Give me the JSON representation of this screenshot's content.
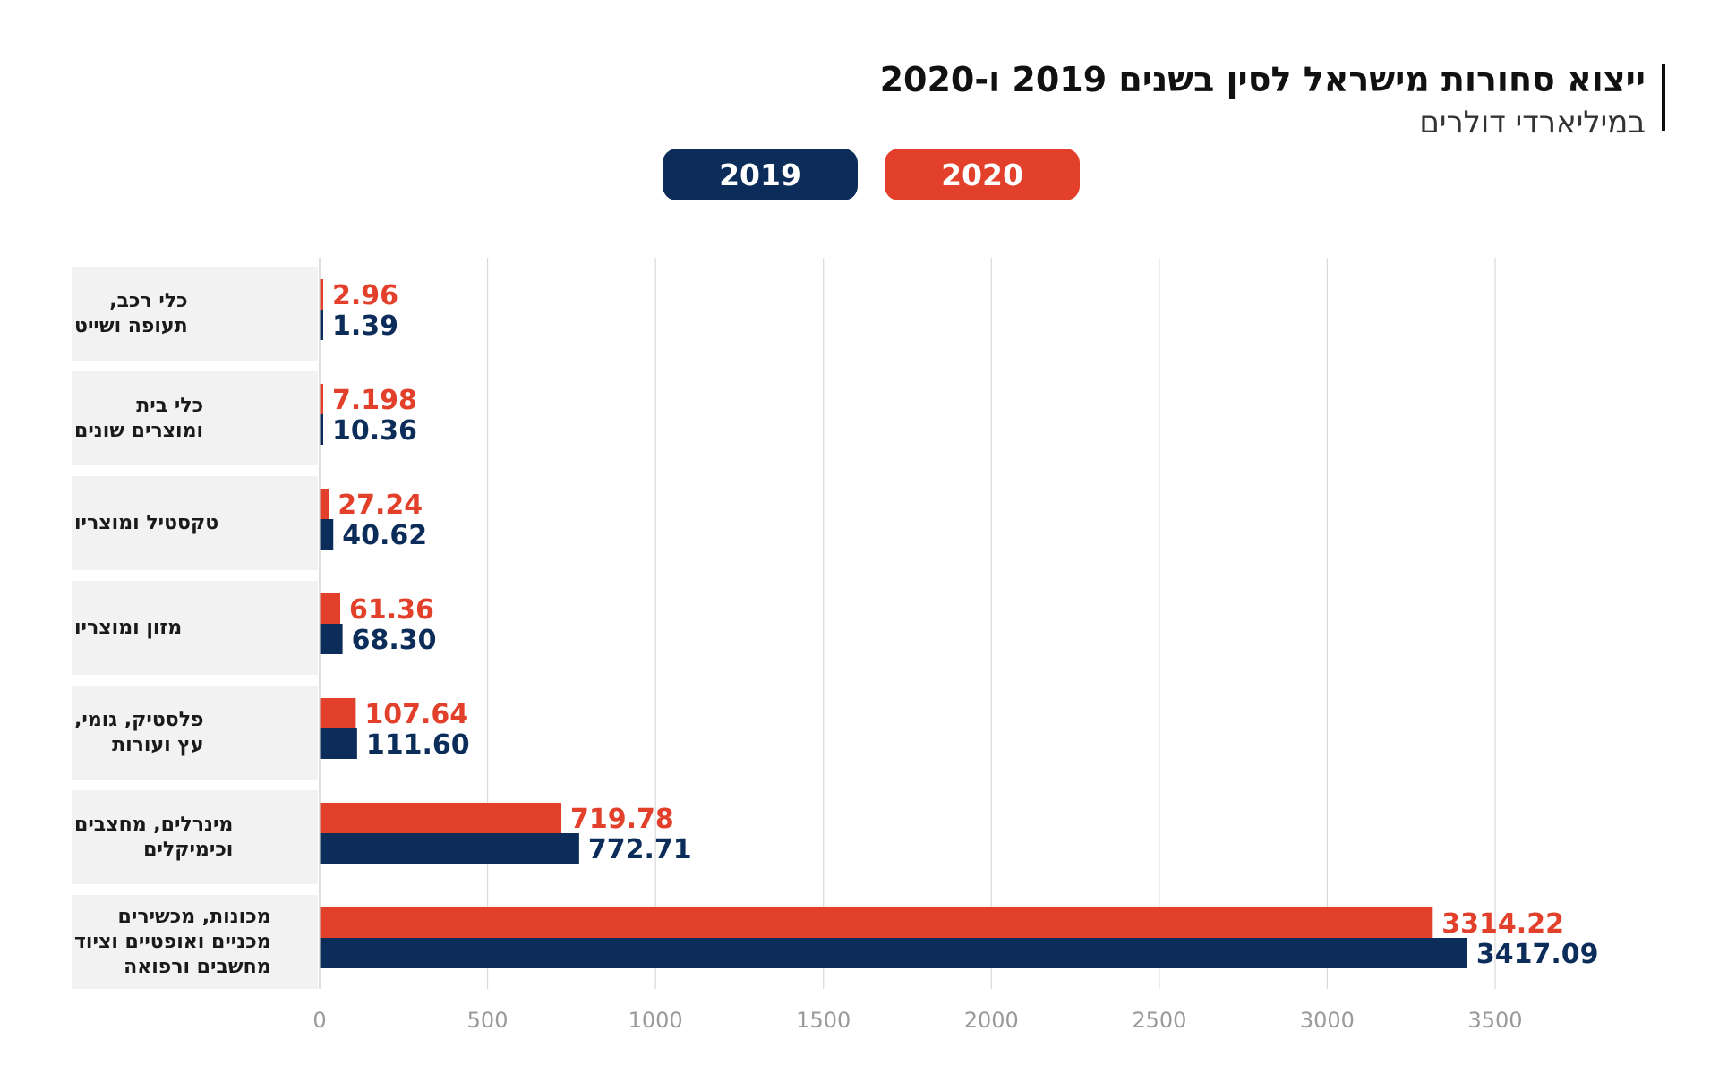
{
  "header": {
    "title": "ייצוא סחורות מישראל לסין בשנים 2019 ו-2020",
    "subtitle": "במיליארדי דולרים"
  },
  "colors": {
    "series_2019": "#0c2d59",
    "series_2020": "#e2402b",
    "grid": "#d9d9d9",
    "tick": "#9a9a9a",
    "category_bg": "#f2f2f2"
  },
  "chart_data": {
    "type": "bar",
    "orientation": "horizontal",
    "title": "ייצוא סחורות מישראל לסין בשנים 2019 ו-2020",
    "subtitle": "במיליארדי דולרים",
    "categories": [
      "כלי רכב,\nתעופה ושייט",
      "כלי בית\nומוצרים שונים",
      "טקסטיל ומוצריו",
      "מזון ומוצריו",
      "פלסטיק, גומי,\nעץ ועורות",
      "מינרלים, מחצבים\nוכימיקלים",
      "מכונות, מכשירים\nמכניים ואופטיים וציוד\nמחשבים ורפואה"
    ],
    "series": [
      {
        "name": "2020",
        "values": [
          2.96,
          7.198,
          27.24,
          61.36,
          107.64,
          719.78,
          3314.22
        ],
        "labels": [
          "2.96",
          "7.198",
          "27.24",
          "61.36",
          "107.64",
          "719.78",
          "3314.22"
        ]
      },
      {
        "name": "2019",
        "values": [
          1.39,
          10.36,
          40.62,
          68.3,
          111.6,
          772.71,
          3417.09
        ],
        "labels": [
          "1.39",
          "10.36",
          "40.62",
          "68.30",
          "111.60",
          "772.71",
          "3417.09"
        ]
      }
    ],
    "xlim": [
      0,
      3500
    ],
    "xticks": [
      "0",
      "500",
      "1000",
      "1500",
      "2000",
      "2500",
      "3000",
      "3500"
    ],
    "grid": true,
    "legend_position": "top-center"
  }
}
